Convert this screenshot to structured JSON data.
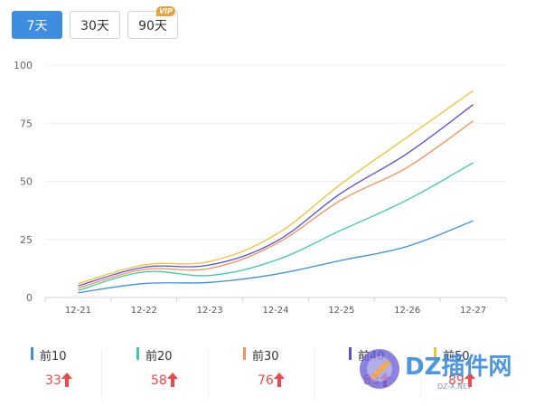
{
  "tabs": [
    {
      "label": "7天",
      "active": true
    },
    {
      "label": "30天",
      "active": false
    },
    {
      "label": "90天",
      "active": false,
      "badge": "VIP"
    }
  ],
  "chart_data": {
    "type": "line",
    "categories": [
      "12-21",
      "12-22",
      "12-23",
      "12-24",
      "12-25",
      "12-26",
      "12-27"
    ],
    "ylim": [
      0,
      100
    ],
    "yticks": [
      0,
      25,
      50,
      75,
      100
    ],
    "grid": true,
    "series": [
      {
        "name": "前10",
        "color": "#3d8ee0",
        "x": [
          0,
          1,
          2,
          3,
          4,
          5,
          6
        ],
        "values": [
          2,
          6,
          6.5,
          10,
          16,
          22,
          33
        ]
      },
      {
        "name": "前20",
        "color": "#3fc8a4",
        "x": [
          0,
          1,
          2,
          3,
          4,
          5,
          6
        ],
        "values": [
          3,
          11,
          9.5,
          16,
          29,
          42,
          58
        ]
      },
      {
        "name": "前30",
        "color": "#f0925a",
        "x": [
          0,
          1,
          2,
          3,
          4,
          5,
          6
        ],
        "values": [
          4,
          12,
          12.5,
          23,
          42,
          56,
          76
        ]
      },
      {
        "name": "前40",
        "color": "#5a4fd4",
        "x": [
          0,
          1,
          2,
          3,
          4,
          5,
          6
        ],
        "values": [
          5,
          13,
          14,
          24,
          45,
          62,
          83
        ]
      },
      {
        "name": "前50",
        "color": "#f1c232",
        "x": [
          0,
          1,
          2,
          3,
          4,
          5,
          6
        ],
        "values": [
          6,
          14,
          15.5,
          27,
          49,
          69,
          89
        ]
      }
    ]
  },
  "legend": [
    {
      "name": "前10",
      "value": "33",
      "color": "#3d8ee0"
    },
    {
      "name": "前20",
      "value": "58",
      "color": "#3fc8a4"
    },
    {
      "name": "前30",
      "value": "76",
      "color": "#f0925a"
    },
    {
      "name": "前40",
      "value": "83",
      "color": "#5a4fd4"
    },
    {
      "name": "前50",
      "value": "89",
      "color": "#f1c232"
    }
  ],
  "watermark": {
    "text": "DZ插件网",
    "subtext": "DZ-X.NET"
  }
}
